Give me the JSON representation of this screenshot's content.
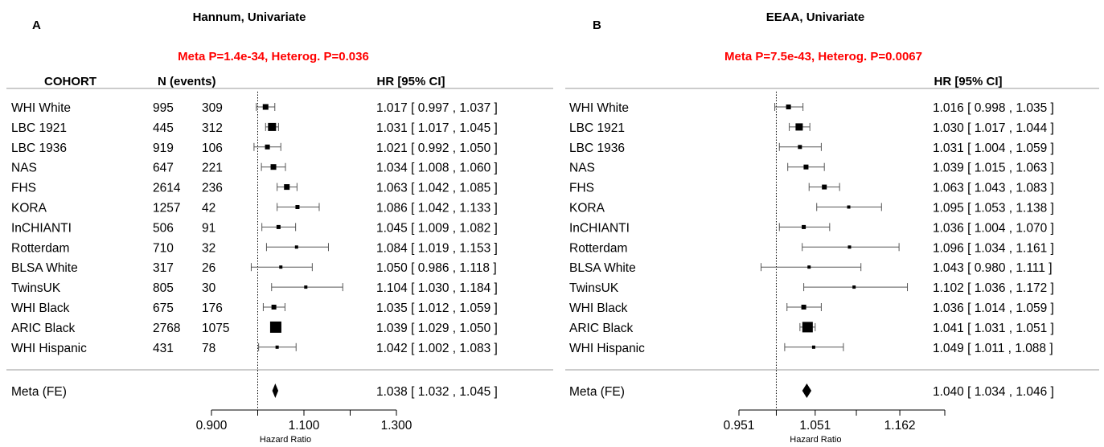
{
  "chart_data": [
    {
      "type": "forest",
      "panel_label": "A",
      "title": "Hannum, Univariate",
      "subtitle": "Meta P=1.4e-34, Heterog. P=0.036",
      "columns": {
        "cohort": "COHORT",
        "n_events": "N (events)",
        "hr": "HR [95% CI]"
      },
      "xlabel": "Hazard Ratio",
      "xticks": [
        0.9,
        1.0,
        1.1,
        1.2,
        1.3
      ],
      "xtick_labels": [
        "0.900",
        "",
        "1.100",
        "",
        "1.300"
      ],
      "xlim": [
        0.9,
        1.3
      ],
      "reference_line": 1.0,
      "rows": [
        {
          "cohort": "WHI White",
          "n": "995",
          "events": "309",
          "hr": 1.017,
          "lo": 0.997,
          "hi": 1.037,
          "hr_text": "1.017 [ 0.997 , 1.037 ]",
          "box": 7
        },
        {
          "cohort": "LBC 1921",
          "n": "445",
          "events": "312",
          "hr": 1.031,
          "lo": 1.017,
          "hi": 1.045,
          "hr_text": "1.031 [ 1.017 , 1.045 ]",
          "box": 10
        },
        {
          "cohort": "LBC 1936",
          "n": "919",
          "events": "106",
          "hr": 1.021,
          "lo": 0.992,
          "hi": 1.05,
          "hr_text": "1.021 [ 0.992 , 1.050 ]",
          "box": 6
        },
        {
          "cohort": "NAS",
          "n": "647",
          "events": "221",
          "hr": 1.034,
          "lo": 1.008,
          "hi": 1.06,
          "hr_text": "1.034 [ 1.008 , 1.060 ]",
          "box": 7
        },
        {
          "cohort": "FHS",
          "n": "2614",
          "events": "236",
          "hr": 1.063,
          "lo": 1.042,
          "hi": 1.085,
          "hr_text": "1.063 [ 1.042 , 1.085 ]",
          "box": 7
        },
        {
          "cohort": "KORA",
          "n": "1257",
          "events": "42",
          "hr": 1.086,
          "lo": 1.042,
          "hi": 1.133,
          "hr_text": "1.086 [ 1.042 , 1.133 ]",
          "box": 5
        },
        {
          "cohort": "InCHIANTI",
          "n": "506",
          "events": "91",
          "hr": 1.045,
          "lo": 1.009,
          "hi": 1.082,
          "hr_text": "1.045 [ 1.009 , 1.082 ]",
          "box": 5
        },
        {
          "cohort": "Rotterdam",
          "n": "710",
          "events": "32",
          "hr": 1.084,
          "lo": 1.019,
          "hi": 1.153,
          "hr_text": "1.084 [ 1.019 , 1.153 ]",
          "box": 4
        },
        {
          "cohort": "BLSA White",
          "n": "317",
          "events": "26",
          "hr": 1.05,
          "lo": 0.986,
          "hi": 1.118,
          "hr_text": "1.050 [ 0.986 , 1.118 ]",
          "box": 4
        },
        {
          "cohort": "TwinsUK",
          "n": "805",
          "events": "30",
          "hr": 1.104,
          "lo": 1.03,
          "hi": 1.184,
          "hr_text": "1.104 [ 1.030 , 1.184 ]",
          "box": 4
        },
        {
          "cohort": "WHI Black",
          "n": "675",
          "events": "176",
          "hr": 1.035,
          "lo": 1.012,
          "hi": 1.059,
          "hr_text": "1.035 [ 1.012 , 1.059 ]",
          "box": 6
        },
        {
          "cohort": "ARIC Black",
          "n": "2768",
          "events": "1075",
          "hr": 1.039,
          "lo": 1.029,
          "hi": 1.05,
          "hr_text": "1.039 [ 1.029 , 1.050 ]",
          "box": 14
        },
        {
          "cohort": "WHI Hispanic",
          "n": "431",
          "events": "78",
          "hr": 1.042,
          "lo": 1.002,
          "hi": 1.083,
          "hr_text": "1.042 [ 1.002 , 1.083 ]",
          "box": 4
        }
      ],
      "meta": {
        "label": "Meta (FE)",
        "hr": 1.038,
        "lo": 1.032,
        "hi": 1.045,
        "hr_text": "1.038 [ 1.032 , 1.045 ]"
      }
    },
    {
      "type": "forest",
      "panel_label": "B",
      "title": "EEAA, Univariate",
      "subtitle": "Meta P=7.5e-43, Heterog. P=0.0067",
      "columns": {
        "hr": "HR [95% CI]"
      },
      "xlabel": "Hazard Ratio",
      "xticks": [
        0.951,
        1.0,
        1.051,
        1.105,
        1.162,
        1.221
      ],
      "xtick_labels": [
        "0.951",
        "",
        "1.051",
        "",
        "1.162",
        ""
      ],
      "xlim": [
        0.951,
        1.221
      ],
      "reference_line": 1.0,
      "rows": [
        {
          "cohort": "WHI White",
          "hr": 1.016,
          "lo": 0.998,
          "hi": 1.035,
          "hr_text": "1.016 [ 0.998 , 1.035 ]",
          "box": 6
        },
        {
          "cohort": "LBC 1921",
          "hr": 1.03,
          "lo": 1.017,
          "hi": 1.044,
          "hr_text": "1.030 [ 1.017 , 1.044 ]",
          "box": 9
        },
        {
          "cohort": "LBC 1936",
          "hr": 1.031,
          "lo": 1.004,
          "hi": 1.059,
          "hr_text": "1.031 [ 1.004 , 1.059 ]",
          "box": 5
        },
        {
          "cohort": "NAS",
          "hr": 1.039,
          "lo": 1.015,
          "hi": 1.063,
          "hr_text": "1.039 [ 1.015 , 1.063 ]",
          "box": 6
        },
        {
          "cohort": "FHS",
          "hr": 1.063,
          "lo": 1.043,
          "hi": 1.083,
          "hr_text": "1.063 [ 1.043 , 1.083 ]",
          "box": 6
        },
        {
          "cohort": "KORA",
          "hr": 1.095,
          "lo": 1.053,
          "hi": 1.138,
          "hr_text": "1.095 [ 1.053 , 1.138 ]",
          "box": 4
        },
        {
          "cohort": "InCHIANTI",
          "hr": 1.036,
          "lo": 1.004,
          "hi": 1.07,
          "hr_text": "1.036 [ 1.004 , 1.070 ]",
          "box": 5
        },
        {
          "cohort": "Rotterdam",
          "hr": 1.096,
          "lo": 1.034,
          "hi": 1.161,
          "hr_text": "1.096 [ 1.034 , 1.161 ]",
          "box": 4
        },
        {
          "cohort": "BLSA White",
          "hr": 1.043,
          "lo": 0.98,
          "hi": 1.111,
          "hr_text": "1.043 [ 0.980 , 1.111 ]",
          "box": 4
        },
        {
          "cohort": "TwinsUK",
          "hr": 1.102,
          "lo": 1.036,
          "hi": 1.172,
          "hr_text": "1.102 [ 1.036 , 1.172 ]",
          "box": 4
        },
        {
          "cohort": "WHI Black",
          "hr": 1.036,
          "lo": 1.014,
          "hi": 1.059,
          "hr_text": "1.036 [ 1.014 , 1.059 ]",
          "box": 6
        },
        {
          "cohort": "ARIC Black",
          "hr": 1.041,
          "lo": 1.031,
          "hi": 1.051,
          "hr_text": "1.041 [ 1.031 , 1.051 ]",
          "box": 13
        },
        {
          "cohort": "WHI Hispanic",
          "hr": 1.049,
          "lo": 1.011,
          "hi": 1.088,
          "hr_text": "1.049 [ 1.011 , 1.088 ]",
          "box": 4
        }
      ],
      "meta": {
        "label": "Meta (FE)",
        "hr": 1.04,
        "lo": 1.034,
        "hi": 1.046,
        "hr_text": "1.040 [ 1.034 , 1.046 ]"
      }
    }
  ],
  "colors": {
    "subtitle": "#ff0000",
    "line": "#000000",
    "grid": "#999999",
    "ci": "#555555"
  }
}
